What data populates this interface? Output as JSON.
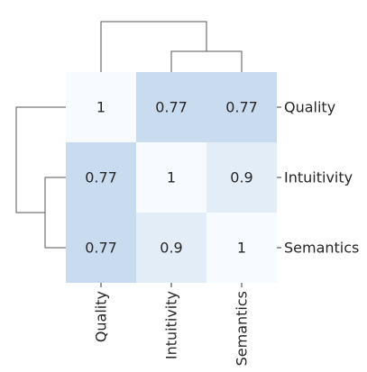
{
  "chart_data": {
    "type": "heatmap",
    "title": "",
    "rows": [
      "Quality",
      "Intuitivity",
      "Semantics"
    ],
    "columns": [
      "Quality",
      "Intuitivity",
      "Semantics"
    ],
    "values": [
      [
        1,
        0.77,
        0.77
      ],
      [
        0.77,
        1,
        0.9
      ],
      [
        0.77,
        0.9,
        1
      ]
    ],
    "value_labels": [
      [
        "1",
        "0.77",
        "0.77"
      ],
      [
        "0.77",
        "1",
        "0.9"
      ],
      [
        "0.77",
        "0.9",
        "1"
      ]
    ],
    "color_range": {
      "min_value": 0.77,
      "max_value": 1,
      "min_color": "#c8dbef",
      "max_color": "#f7fbff"
    },
    "row_dendrogram_position": "left",
    "column_dendrogram_position": "top",
    "grid": false,
    "colorbar": false
  }
}
